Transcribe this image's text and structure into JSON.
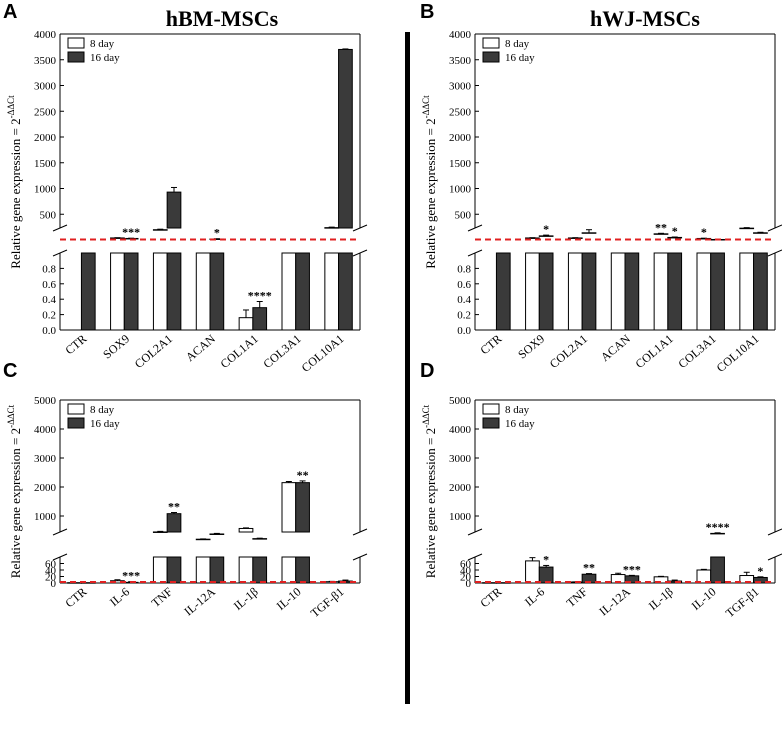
{
  "figure": {
    "colors": {
      "bar_8day": "#ffffff",
      "bar_16day": "#3a3a3a",
      "axis": "#000000",
      "reference_line": "#e02020"
    },
    "ylabel_main": "Relative gene expression = 2",
    "ylabel_sup": "-ΔΔCt",
    "legend": {
      "series_a": "8 day",
      "series_b": "16 day"
    }
  },
  "chart_data": [
    {
      "panel": "A",
      "title": "hBM-MSCs",
      "type": "bar",
      "broken_axis": true,
      "lower_ylim": [
        0,
        1.0
      ],
      "lower_ticks": [
        "0.0",
        "0.2",
        "0.4",
        "0.6",
        "0.8"
      ],
      "upper_ylim": [
        0,
        4000
      ],
      "upper_ticks": [
        "500",
        "1000",
        "1500",
        "2000",
        "2500",
        "3000",
        "3500",
        "4000"
      ],
      "categories": [
        "CTR",
        "SOX9",
        "COL2A1",
        "ACAN",
        "COL1A1",
        "COL3A1",
        "COL10A1"
      ],
      "series": [
        {
          "name": "8 day",
          "values": [
            null,
            40,
            200,
            1,
            0.16,
            1,
            240
          ],
          "errors": [
            0,
            5,
            10,
            0,
            0.1,
            0,
            10
          ]
        },
        {
          "name": "16 day",
          "values": [
            1,
            30,
            930,
            20,
            0.29,
            1,
            3700
          ],
          "errors": [
            0,
            5,
            90,
            5,
            0.08,
            0,
            10
          ]
        }
      ],
      "annotations": [
        {
          "category": "SOX9",
          "series": "16 day",
          "text": "***"
        },
        {
          "category": "ACAN",
          "series": "16 day",
          "text": "*"
        },
        {
          "category": "COL1A1",
          "series": "16 day",
          "text": "****"
        }
      ]
    },
    {
      "panel": "B",
      "title": "hWJ-MSCs",
      "type": "bar",
      "broken_axis": true,
      "lower_ylim": [
        0,
        1.0
      ],
      "lower_ticks": [
        "0.0",
        "0.2",
        "0.4",
        "0.6",
        "0.8"
      ],
      "upper_ylim": [
        0,
        4000
      ],
      "upper_ticks": [
        "500",
        "1000",
        "1500",
        "2000",
        "2500",
        "3000",
        "3500",
        "4000"
      ],
      "categories": [
        "CTR",
        "SOX9",
        "COL2A1",
        "ACAN",
        "COL1A1",
        "COL3A1",
        "COL10A1"
      ],
      "series": [
        {
          "name": "8 day",
          "values": [
            null,
            40,
            40,
            1,
            120,
            30,
            230
          ],
          "errors": [
            0,
            5,
            5,
            0,
            10,
            5,
            10
          ]
        },
        {
          "name": "16 day",
          "values": [
            1,
            80,
            140,
            1,
            50,
            10,
            140
          ],
          "errors": [
            0,
            15,
            60,
            0,
            8,
            3,
            10
          ]
        }
      ],
      "annotations": [
        {
          "category": "SOX9",
          "series": "16 day",
          "text": "*"
        },
        {
          "category": "COL1A1",
          "series": "8 day",
          "text": "**"
        },
        {
          "category": "COL1A1",
          "series": "16 day",
          "text": "*"
        },
        {
          "category": "COL3A1",
          "series": "8 day",
          "text": "*"
        }
      ]
    },
    {
      "panel": "C",
      "type": "bar",
      "broken_axis": true,
      "lower_ylim": [
        0,
        80
      ],
      "lower_ticks": [
        "0",
        "20",
        "40",
        "60"
      ],
      "upper_ylim": [
        0,
        5000
      ],
      "upper_ticks": [
        "1000",
        "2000",
        "3000",
        "4000",
        "5000"
      ],
      "categories": [
        "CTR",
        "IL-6",
        "TNF",
        "IL-12A",
        "IL-1β",
        "IL-10",
        "TGF-β1"
      ],
      "series": [
        {
          "name": "8 day",
          "values": [
            1,
            7,
            450,
            200,
            570,
            2150,
            4
          ],
          "errors": [
            0,
            3,
            20,
            10,
            20,
            40,
            1
          ]
        },
        {
          "name": "16 day",
          "values": [
            1,
            2,
            1080,
            380,
            220,
            2150,
            6
          ],
          "errors": [
            0,
            2,
            40,
            20,
            15,
            60,
            3
          ]
        }
      ],
      "annotations": [
        {
          "category": "IL-6",
          "series": "16 day",
          "text": "***"
        },
        {
          "category": "TNF",
          "series": "16 day",
          "text": "**"
        },
        {
          "category": "IL-10",
          "series": "16 day",
          "text": "**"
        }
      ]
    },
    {
      "panel": "D",
      "type": "bar",
      "broken_axis": true,
      "lower_ylim": [
        0,
        80
      ],
      "lower_ticks": [
        "0",
        "20",
        "40",
        "60"
      ],
      "upper_ylim": [
        0,
        5000
      ],
      "upper_ticks": [
        "1000",
        "2000",
        "3000",
        "4000",
        "5000"
      ],
      "categories": [
        "CTR",
        "IL-6",
        "TNF",
        "IL-12A",
        "IL-1β",
        "IL-10",
        "TGF-β1"
      ],
      "series": [
        {
          "name": "8 day",
          "values": [
            1,
            68,
            3,
            26,
            19,
            40,
            23
          ],
          "errors": [
            0,
            10,
            0.5,
            4,
            1.5,
            2,
            10
          ]
        },
        {
          "name": "16 day",
          "values": [
            1,
            49,
            27,
            22,
            6,
            400,
            17
          ],
          "errors": [
            0,
            5,
            2,
            1.5,
            3,
            20,
            2
          ]
        }
      ],
      "annotations": [
        {
          "category": "IL-6",
          "series": "16 day",
          "text": "*"
        },
        {
          "category": "TNF",
          "series": "16 day",
          "text": "**"
        },
        {
          "category": "IL-12A",
          "series": "16 day",
          "text": "***"
        },
        {
          "category": "IL-10",
          "series": "16 day",
          "text": "****"
        },
        {
          "category": "TGF-β1",
          "series": "16 day",
          "text": "*"
        }
      ]
    }
  ]
}
